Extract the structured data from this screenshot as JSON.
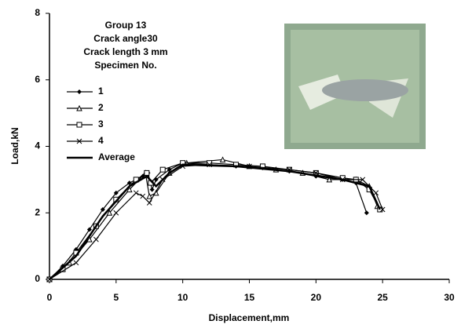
{
  "chart_data": {
    "type": "line",
    "annotations": [
      "Group 13",
      "Crack angle30",
      "Crack length  3 mm",
      "Specimen No."
    ],
    "x_label": "Displacement,mm",
    "y_label": "Load,kN",
    "xlim": [
      0,
      30
    ],
    "xticks": [
      0,
      5,
      10,
      15,
      20,
      25,
      30
    ],
    "ylim": [
      0,
      8
    ],
    "yticks": [
      0,
      2,
      4,
      6,
      8
    ],
    "series": [
      {
        "name": "1",
        "color": "#000000",
        "marker": "diamond",
        "x": [
          0,
          1,
          2,
          3,
          4,
          5,
          6,
          7,
          7.4,
          7.7,
          8,
          9,
          10,
          12,
          14,
          16,
          18,
          20,
          22,
          23,
          23.8
        ],
        "values": [
          0,
          0.4,
          0.9,
          1.5,
          2.1,
          2.6,
          2.9,
          3.1,
          3.2,
          2.7,
          3.0,
          3.3,
          3.5,
          3.45,
          3.4,
          3.35,
          3.25,
          3.1,
          3.0,
          2.9,
          2.0
        ]
      },
      {
        "name": "2",
        "color": "#000000",
        "marker": "triangle",
        "x": [
          0,
          1.5,
          3,
          4.5,
          6,
          7.2,
          7.5,
          8,
          9,
          10.3,
          13,
          15,
          17,
          19,
          21,
          23,
          24,
          24.6
        ],
        "values": [
          0,
          0.5,
          1.2,
          2.0,
          2.7,
          3.2,
          2.5,
          2.6,
          3.2,
          3.5,
          3.6,
          3.4,
          3.3,
          3.2,
          3.0,
          3.0,
          2.8,
          2.2
        ]
      },
      {
        "name": "3",
        "color": "#000000",
        "marker": "square",
        "x": [
          0,
          1,
          2,
          3.5,
          5,
          6.5,
          7.3,
          7.6,
          8.5,
          10,
          12,
          14,
          16,
          18,
          20,
          22,
          23,
          24,
          24.8
        ],
        "values": [
          0,
          0.3,
          0.8,
          1.6,
          2.4,
          3.0,
          3.2,
          2.9,
          3.3,
          3.5,
          3.5,
          3.45,
          3.4,
          3.3,
          3.2,
          3.05,
          3.0,
          2.7,
          2.1
        ]
      },
      {
        "name": "4",
        "color": "#000000",
        "marker": "x",
        "x": [
          0,
          2,
          3.5,
          5,
          6.5,
          7,
          7.5,
          8.5,
          10,
          12,
          15,
          18,
          20,
          22,
          23.5,
          24.5,
          25
        ],
        "values": [
          0,
          0.5,
          1.2,
          2.0,
          2.6,
          2.5,
          2.3,
          3.0,
          3.4,
          3.45,
          3.4,
          3.3,
          3.2,
          3.0,
          3.0,
          2.6,
          2.1
        ]
      },
      {
        "name": "Average",
        "color": "#000000",
        "marker": "none",
        "width": 2.5,
        "x": [
          0,
          2,
          4,
          6,
          7.3,
          8,
          9,
          10,
          14,
          18,
          22,
          24,
          24.8
        ],
        "values": [
          0,
          0.7,
          1.9,
          2.8,
          3.1,
          2.8,
          3.2,
          3.45,
          3.4,
          3.25,
          3.0,
          2.8,
          2.1
        ]
      }
    ]
  }
}
